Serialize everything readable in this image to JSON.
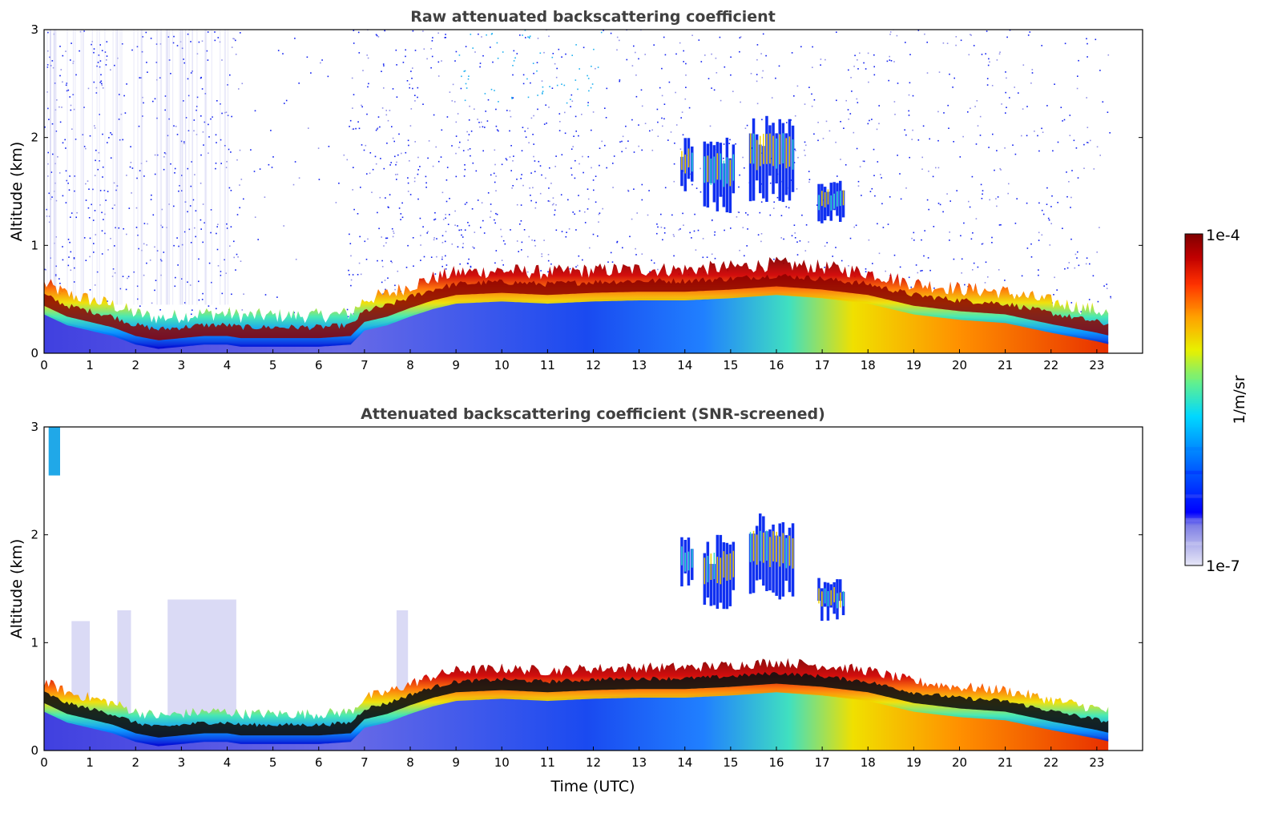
{
  "chart_data": [
    {
      "type": "heatmap",
      "title": "Raw attenuated backscattering coefficient",
      "xlabel": "",
      "ylabel": "Altitude (km)",
      "xlim": [
        0,
        24
      ],
      "ylim": [
        0,
        3
      ],
      "x_ticks": [
        "0",
        "1",
        "2",
        "3",
        "4",
        "5",
        "6",
        "7",
        "8",
        "9",
        "10",
        "11",
        "12",
        "13",
        "14",
        "15",
        "16",
        "17",
        "18",
        "19",
        "20",
        "21",
        "22",
        "23"
      ],
      "y_ticks": [
        "0",
        "1",
        "2",
        "3"
      ],
      "data_end_time": 23.3,
      "boundary_layer_top_km": {
        "time": [
          0,
          0.5,
          1,
          1.5,
          2,
          2.5,
          3,
          3.5,
          4,
          4.3,
          5,
          6,
          6.7,
          7,
          7.5,
          8,
          8.5,
          9,
          10,
          11,
          12,
          13,
          14,
          15,
          16,
          17,
          18,
          19,
          20,
          21,
          22,
          23,
          23.3
        ],
        "altitude": [
          0.5,
          0.4,
          0.35,
          0.3,
          0.22,
          0.18,
          0.2,
          0.22,
          0.22,
          0.2,
          0.2,
          0.2,
          0.22,
          0.35,
          0.4,
          0.48,
          0.55,
          0.6,
          0.62,
          0.6,
          0.62,
          0.63,
          0.63,
          0.65,
          0.68,
          0.65,
          0.6,
          0.5,
          0.45,
          0.42,
          0.33,
          0.25,
          0.22
        ]
      },
      "elevated_layers": [
        {
          "time_start": 13.9,
          "time_end": 14.2,
          "alt_bottom": 1.5,
          "alt_top": 2.0
        },
        {
          "time_start": 14.4,
          "time_end": 15.1,
          "alt_bottom": 1.3,
          "alt_top": 2.0
        },
        {
          "time_start": 15.4,
          "time_end": 16.4,
          "alt_bottom": 1.4,
          "alt_top": 2.2
        },
        {
          "time_start": 16.9,
          "time_end": 17.5,
          "alt_bottom": 1.2,
          "alt_top": 1.6
        }
      ]
    },
    {
      "type": "heatmap",
      "title": "Attenuated backscattering coefficient (SNR-screened)",
      "xlabel": "Time (UTC)",
      "ylabel": "Altitude (km)",
      "xlim": [
        0,
        24
      ],
      "ylim": [
        0,
        3
      ],
      "x_ticks": [
        "0",
        "1",
        "2",
        "3",
        "4",
        "5",
        "6",
        "7",
        "8",
        "9",
        "10",
        "11",
        "12",
        "13",
        "14",
        "15",
        "16",
        "17",
        "18",
        "19",
        "20",
        "21",
        "22",
        "23"
      ],
      "y_ticks": [
        "0",
        "1",
        "2",
        "3"
      ],
      "data_end_time": 23.3
    }
  ],
  "colorbar": {
    "label": "1/m/sr",
    "max_label": "1e-4",
    "min_label": "1e-7",
    "min": 1e-07,
    "max": 0.0001,
    "scale": "log",
    "colormap": "jet",
    "colors": [
      "#e6e6f7",
      "#b4b4ec",
      "#8080e6",
      "#0000ff",
      "#0064ff",
      "#00c8ff",
      "#30e8c8",
      "#90f060",
      "#e8f000",
      "#ffc000",
      "#ff7800",
      "#f03000",
      "#c00000",
      "#800000"
    ]
  }
}
